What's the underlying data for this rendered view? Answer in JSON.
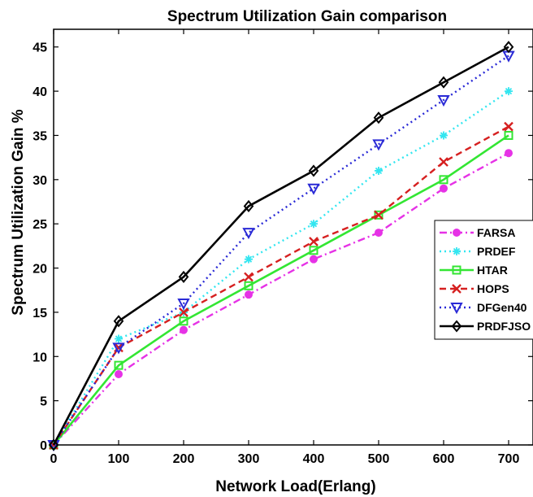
{
  "chart_data": {
    "type": "line",
    "title": "Spectrum Utilization Gain comparison",
    "xlabel": "Network Load(Erlang)",
    "ylabel": "Spectrum Utilization Gain %",
    "x": [
      0,
      100,
      200,
      300,
      400,
      500,
      600,
      700
    ],
    "xlim": [
      0,
      700
    ],
    "ylim": [
      0,
      47
    ],
    "xticks": [
      0,
      100,
      200,
      300,
      400,
      500,
      600,
      700
    ],
    "yticks": [
      0,
      5,
      10,
      15,
      20,
      25,
      30,
      35,
      40,
      45
    ],
    "grid": false,
    "legend_position": "right",
    "series": [
      {
        "name": "FARSA",
        "values": [
          0,
          8,
          13,
          17,
          21,
          24,
          29,
          33
        ],
        "color": "#e632e6",
        "dash": "dashdot",
        "marker": "circle"
      },
      {
        "name": "PRDEF",
        "values": [
          0,
          12,
          15,
          21,
          25,
          31,
          35,
          40
        ],
        "color": "#33e6f0",
        "dash": "dotted",
        "marker": "star"
      },
      {
        "name": "HTAR",
        "values": [
          0,
          9,
          14,
          18,
          22,
          26,
          30,
          35
        ],
        "color": "#33e633",
        "dash": "solid",
        "marker": "square"
      },
      {
        "name": "HOPS",
        "values": [
          0,
          11,
          15,
          19,
          23,
          26,
          32,
          36
        ],
        "color": "#d62020",
        "dash": "dashed",
        "marker": "x"
      },
      {
        "name": "DFGen40",
        "values": [
          0,
          11,
          16,
          24,
          29,
          34,
          39,
          44
        ],
        "color": "#2a2ad6",
        "dash": "dotted",
        "marker": "triangle-down"
      },
      {
        "name": "PRDFJSO",
        "values": [
          0,
          14,
          19,
          27,
          31,
          37,
          41,
          45
        ],
        "color": "#000000",
        "dash": "solid",
        "marker": "diamond"
      }
    ]
  }
}
